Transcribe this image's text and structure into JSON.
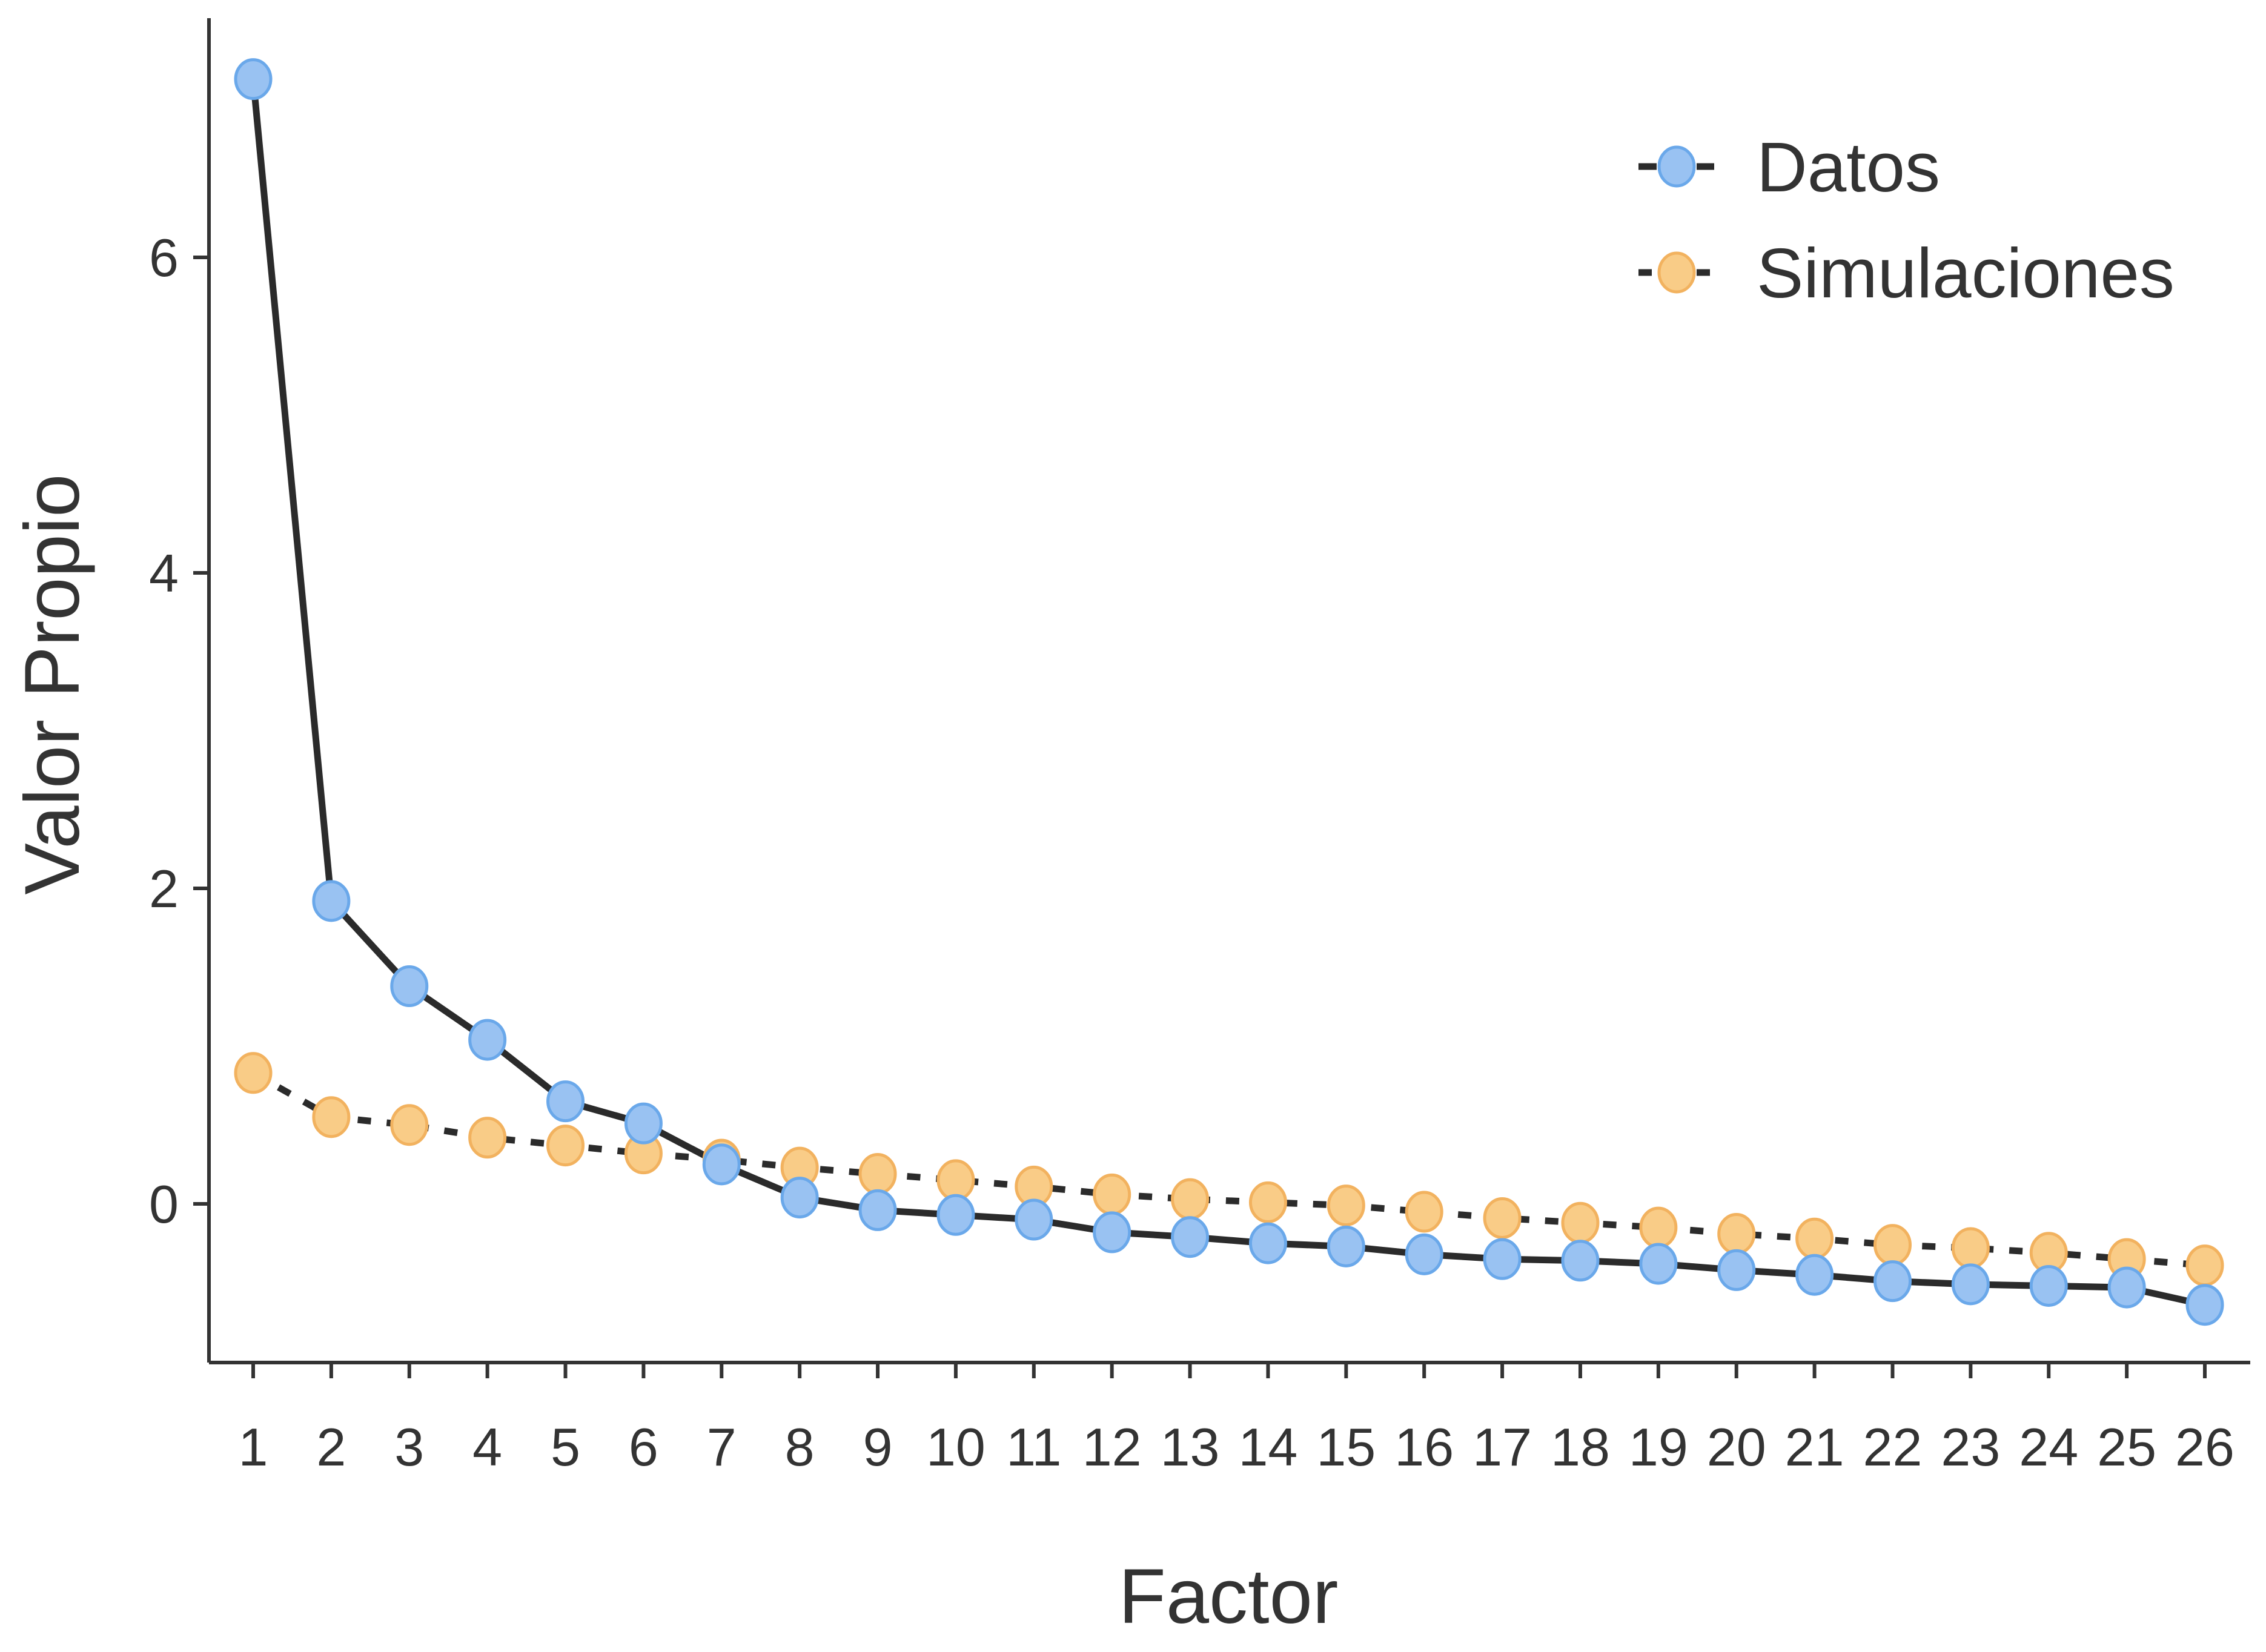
{
  "chart_data": {
    "type": "line",
    "title": "",
    "xlabel": "Factor",
    "ylabel": "Valor Propio",
    "x": [
      1,
      2,
      3,
      4,
      5,
      6,
      7,
      8,
      9,
      10,
      11,
      12,
      13,
      14,
      15,
      16,
      17,
      18,
      19,
      20,
      21,
      22,
      23,
      24,
      25,
      26
    ],
    "x_tick_labels": [
      "1",
      "2",
      "3",
      "4",
      "5",
      "6",
      "7",
      "8",
      "9",
      "10",
      "11",
      "12",
      "13",
      "14",
      "15",
      "16",
      "17",
      "18",
      "19",
      "20",
      "21",
      "22",
      "23",
      "24",
      "25",
      "26"
    ],
    "ylim": [
      -1.0,
      7.5
    ],
    "y_ticks": [
      0,
      2,
      4,
      6
    ],
    "y_tick_labels": [
      "0",
      "2",
      "4",
      "6"
    ],
    "grid": false,
    "legend_position": "top-right",
    "series": [
      {
        "name": "Datos",
        "line_style": "solid",
        "marker_color": "#99c2f2",
        "marker_edge": "#6aa8ea",
        "line_color": "#2b2b2b",
        "values": [
          7.13,
          1.92,
          1.38,
          1.04,
          0.65,
          0.51,
          0.25,
          0.04,
          -0.04,
          -0.07,
          -0.1,
          -0.18,
          -0.21,
          -0.25,
          -0.27,
          -0.32,
          -0.35,
          -0.36,
          -0.38,
          -0.42,
          -0.45,
          -0.49,
          -0.51,
          -0.52,
          -0.53,
          -0.64
        ]
      },
      {
        "name": "Simulaciones",
        "line_style": "dotted",
        "marker_color": "#f9cc87",
        "marker_edge": "#f2b25f",
        "line_color": "#2b2b2b",
        "values": [
          0.83,
          0.55,
          0.5,
          0.42,
          0.37,
          0.32,
          0.28,
          0.23,
          0.19,
          0.15,
          0.11,
          0.06,
          0.03,
          0.01,
          -0.01,
          -0.05,
          -0.09,
          -0.12,
          -0.15,
          -0.19,
          -0.22,
          -0.26,
          -0.28,
          -0.31,
          -0.35,
          -0.39
        ]
      }
    ]
  }
}
